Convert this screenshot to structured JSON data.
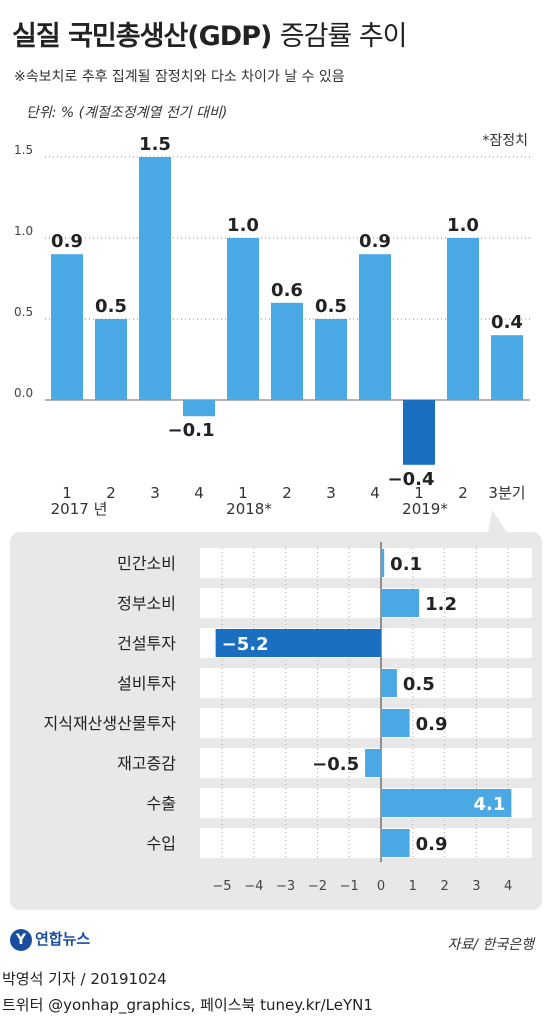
{
  "header": {
    "title_main": "실질 국민총생산(GDP)",
    "title_sub": "증감률 추이",
    "note": "※속보치로 추후 집계될 잠정치와 다소 차이가 날 수 있음",
    "unit": "단위: % (계절조정계열 전기 대비)",
    "prelim_note": "*잠정치"
  },
  "chart_data": [
    {
      "type": "bar",
      "categories": [
        "1",
        "2",
        "3",
        "4",
        "1",
        "2",
        "3",
        "4",
        "1",
        "2",
        "3분기"
      ],
      "year_labels": [
        "2017 년",
        "2018*",
        "2019*"
      ],
      "values": [
        0.9,
        0.5,
        1.5,
        -0.1,
        1.0,
        0.6,
        0.5,
        0.9,
        -0.4,
        1.0,
        0.4
      ],
      "value_labels": [
        "0.9",
        "0.5",
        "1.5",
        "−0.1",
        "1.0",
        "0.6",
        "0.5",
        "0.9",
        "−0.4",
        "1.0",
        "0.4"
      ],
      "yticks": [
        "0.0",
        "0.5",
        "1.0",
        "1.5"
      ],
      "ylim": [
        -0.4,
        1.5
      ],
      "grid": true,
      "highlight_index": 8,
      "colors": {
        "bar": "#4aa8e4",
        "highlight": "#1a6fc1",
        "grid": "#888888"
      }
    },
    {
      "type": "bar",
      "orientation": "horizontal",
      "categories": [
        "민간소비",
        "정부소비",
        "건설투자",
        "설비투자",
        "지식재산생산물투자",
        "재고증감",
        "수출",
        "수입"
      ],
      "values": [
        0.1,
        1.2,
        -5.2,
        0.5,
        0.9,
        -0.5,
        4.1,
        0.9
      ],
      "value_labels": [
        "0.1",
        "1.2",
        "−5.2",
        "0.5",
        "0.9",
        "−0.5",
        "4.1",
        "0.9"
      ],
      "xticks": [
        "−5",
        "−4",
        "−3",
        "−2",
        "−1",
        "0",
        "1",
        "2",
        "3",
        "4"
      ],
      "xlim": [
        -5.2,
        4.1
      ],
      "colors": {
        "bar": "#4aa8e4",
        "highlight": "#1a6fc1",
        "row": "#ffffff"
      }
    }
  ],
  "footer": {
    "logo_text": "연합뉴스",
    "source": "자료/ 한국은행",
    "credit": "박영석 기자 /  20191024",
    "sns": "트위터 @yonhap_graphics, 페이스북 tuney.kr/LeYN1"
  }
}
